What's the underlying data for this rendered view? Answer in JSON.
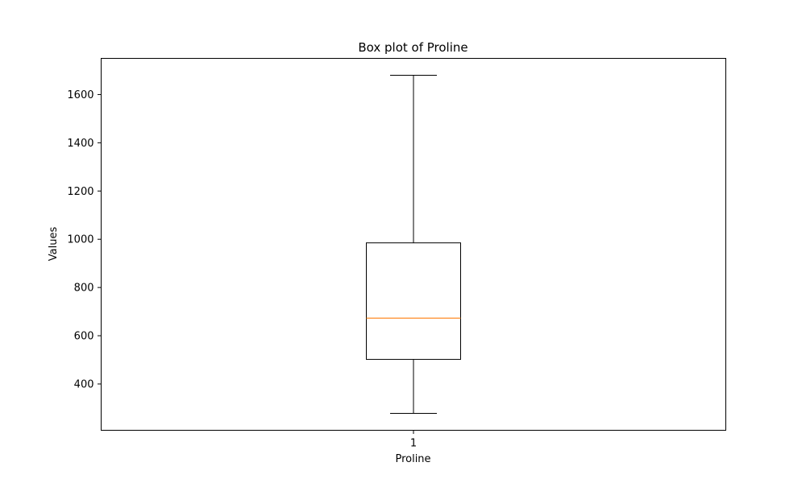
{
  "chart_data": {
    "type": "box",
    "title": "Box plot of Proline",
    "xlabel": "Proline",
    "ylabel": "Values",
    "categories": [
      "1"
    ],
    "ylim": [
      208,
      1750
    ],
    "yticks": [
      400,
      600,
      800,
      1000,
      1200,
      1400,
      1600
    ],
    "boxes": [
      {
        "whisker_low": 278,
        "q1": 502,
        "median": 673,
        "q3": 985,
        "whisker_high": 1680
      }
    ],
    "grid": false,
    "legend": "none",
    "colors": {
      "box": "#000000",
      "median": "#ff7f0e"
    }
  }
}
